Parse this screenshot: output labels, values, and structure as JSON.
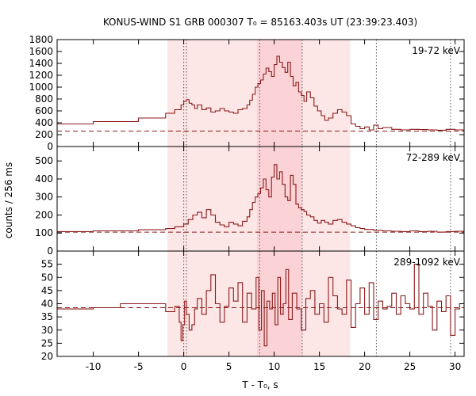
{
  "chart_data": {
    "type": "line",
    "title": "KONUS-WIND S1 GRB 000307 T₀ = 85163.403s UT (23:39:23.403)",
    "xlabel": "T - T₀, s",
    "ylabel": "counts / 256 ms",
    "xlim": [
      -14,
      31
    ],
    "xticks": [
      -10,
      -5,
      0,
      5,
      10,
      15,
      20,
      25,
      30
    ],
    "grid": false,
    "colors": {
      "line": "#8b1a1a",
      "band_light": "#fde6e6",
      "band_dark": "#fbd2d5",
      "marker": "#555555"
    },
    "shaded_intervals": [
      {
        "x": [
          -1.8,
          18.4
        ],
        "shade": "light"
      },
      {
        "x": [
          8.1,
          13.1
        ],
        "shade": "dark"
      }
    ],
    "vertical_markers": [
      0.0,
      0.3,
      8.4,
      13.1,
      21.3,
      29.5
    ],
    "panels": [
      {
        "band": "19-72 keV",
        "ylim": [
          0,
          1800
        ],
        "yticks": [
          0,
          200,
          400,
          600,
          800,
          1000,
          1200,
          1400,
          1600,
          1800
        ],
        "background": 260,
        "x": [
          -14,
          -10,
          -5,
          -2,
          -1,
          -0.3,
          0,
          0.3,
          0.6,
          0.9,
          1.2,
          1.5,
          2,
          2.5,
          3,
          3.5,
          4,
          4.5,
          5,
          5.5,
          6,
          6.5,
          7,
          7.3,
          7.6,
          7.9,
          8.2,
          8.5,
          8.8,
          9.1,
          9.4,
          9.7,
          10,
          10.3,
          10.6,
          10.9,
          11.2,
          11.5,
          11.8,
          12.1,
          12.4,
          12.7,
          13,
          13.3,
          13.6,
          14,
          14.4,
          14.8,
          15.2,
          15.6,
          16,
          16.5,
          17,
          17.5,
          18,
          18.5,
          19,
          19.5,
          20,
          20.5,
          21,
          21.5,
          22,
          23,
          24,
          25,
          26,
          27,
          28,
          29,
          30,
          31
        ],
        "values": [
          380,
          420,
          480,
          560,
          620,
          700,
          760,
          790,
          730,
          700,
          640,
          700,
          620,
          650,
          580,
          600,
          640,
          600,
          580,
          560,
          620,
          640,
          700,
          780,
          880,
          1000,
          1060,
          1120,
          1220,
          1320,
          1260,
          1180,
          1380,
          1520,
          1420,
          1330,
          1250,
          1420,
          1180,
          1020,
          1080,
          920,
          860,
          760,
          920,
          820,
          680,
          600,
          520,
          440,
          480,
          560,
          620,
          580,
          520,
          380,
          340,
          300,
          330,
          280,
          360,
          300,
          320,
          290,
          280,
          290,
          285,
          280,
          275,
          290,
          280,
          270
        ]
      },
      {
        "band": "72-289 keV",
        "ylim": [
          0,
          580
        ],
        "yticks": [
          0,
          100,
          200,
          300,
          400,
          500
        ],
        "background": 105,
        "x": [
          -14,
          -10,
          -5,
          -2,
          -1,
          0,
          0.5,
          1,
          1.5,
          2,
          2.5,
          3,
          3.5,
          4,
          4.5,
          5,
          5.5,
          6,
          6.5,
          7,
          7.3,
          7.6,
          7.9,
          8.2,
          8.5,
          8.8,
          9.1,
          9.4,
          9.7,
          10,
          10.3,
          10.6,
          10.9,
          11.2,
          11.5,
          11.8,
          12.1,
          12.4,
          12.7,
          13,
          13.3,
          13.6,
          14,
          14.4,
          14.8,
          15.2,
          15.6,
          16,
          16.5,
          17,
          17.5,
          18,
          18.5,
          19,
          19.5,
          20,
          21,
          22,
          23,
          24,
          25,
          26,
          27,
          28,
          29,
          30,
          31
        ],
        "values": [
          108,
          112,
          118,
          125,
          135,
          150,
          175,
          200,
          215,
          185,
          230,
          200,
          160,
          145,
          135,
          160,
          150,
          140,
          165,
          190,
          230,
          270,
          300,
          320,
          350,
          400,
          340,
          300,
          410,
          480,
          400,
          440,
          370,
          300,
          280,
          420,
          370,
          260,
          240,
          230,
          220,
          200,
          190,
          170,
          155,
          170,
          160,
          150,
          170,
          175,
          160,
          150,
          140,
          130,
          125,
          120,
          115,
          112,
          110,
          108,
          112,
          108,
          110,
          105,
          108,
          110,
          112
        ]
      },
      {
        "band": "289-1092 keV",
        "ylim": [
          20,
          60
        ],
        "yticks": [
          20,
          25,
          30,
          35,
          40,
          45,
          50,
          55
        ],
        "background": 38.5,
        "x": [
          -14,
          -10,
          -7,
          -2,
          -1,
          -0.5,
          -0.3,
          -0.1,
          0.1,
          0.3,
          0.6,
          0.9,
          1.2,
          1.5,
          2,
          2.5,
          3,
          3.5,
          4,
          4.5,
          5,
          5.5,
          6,
          6.5,
          7,
          7.5,
          8,
          8.3,
          8.6,
          8.9,
          9.2,
          9.5,
          9.8,
          10.1,
          10.4,
          10.7,
          11,
          11.3,
          11.6,
          12,
          12.5,
          13,
          13.5,
          14,
          14.5,
          15,
          15.5,
          16,
          16.5,
          17,
          17.5,
          18,
          18.5,
          19,
          19.5,
          20,
          20.5,
          21,
          21.5,
          22,
          22.5,
          23,
          23.5,
          24,
          24.5,
          25,
          25.5,
          26,
          26.5,
          27,
          27.5,
          28,
          28.5,
          29,
          29.5,
          30,
          30.5
        ],
        "values": [
          38,
          38.5,
          40,
          37,
          39,
          33,
          26,
          32,
          41,
          36,
          30,
          32,
          38,
          42,
          36,
          45,
          51,
          40,
          33,
          39,
          46,
          41,
          48,
          33,
          44,
          38,
          50,
          30,
          45,
          24,
          41,
          38,
          44,
          32,
          50,
          36,
          40,
          53,
          34,
          44,
          38,
          30,
          42,
          45,
          36,
          40,
          33,
          50,
          43,
          38,
          36,
          49,
          31,
          40,
          46,
          36,
          48,
          34,
          41,
          38,
          39,
          44,
          36,
          43,
          40,
          38,
          55,
          36,
          44,
          39,
          30,
          41,
          37,
          43,
          28,
          38,
          40
        ]
      }
    ]
  }
}
